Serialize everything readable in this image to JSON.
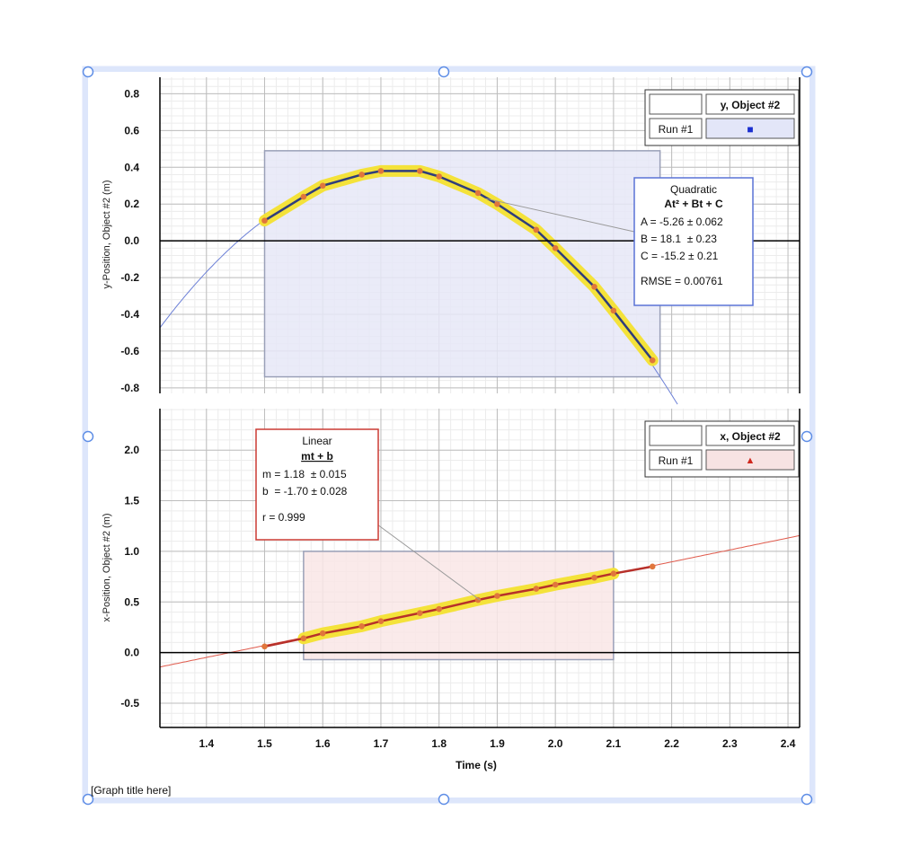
{
  "graph_title": "[Graph title here]",
  "colors": {
    "selection_frame": "#dde6fb",
    "handle": "#5f8ee6",
    "y_series": "#2f3d7c",
    "x_series": "#b7302a",
    "point": "#e0763c",
    "highlight": "#f4e23a",
    "y_region": "#e6e8f7",
    "x_region": "#f9e6e6",
    "y_fit_line": "#6b7fd6",
    "x_fit_line": "#e05a4c",
    "box_y_border": "#5a73d6",
    "box_x_border": "#cc3a33"
  },
  "chart_data": [
    {
      "type": "line",
      "id": "y_chart",
      "ylabel": "y-Position, Object #2 (m)",
      "xlabel": "",
      "xlim": [
        1.32,
        2.42
      ],
      "ylim": [
        -0.83,
        0.89
      ],
      "y_ticks": [
        "0.8",
        "0.6",
        "0.4",
        "0.2",
        "0.0",
        "-0.2",
        "-0.4",
        "-0.6",
        "-0.8"
      ],
      "y_tick_values": [
        0.8,
        0.6,
        0.4,
        0.2,
        0.0,
        -0.2,
        -0.4,
        -0.6,
        -0.8
      ],
      "grid": true,
      "series": [
        {
          "name": "Run #1",
          "marker": "square",
          "x": [
            1.5,
            1.567,
            1.6,
            1.667,
            1.7,
            1.767,
            1.8,
            1.867,
            1.9,
            1.967,
            2.0,
            2.067,
            2.1,
            2.167
          ],
          "y": [
            0.11,
            0.24,
            0.3,
            0.36,
            0.38,
            0.38,
            0.35,
            0.26,
            0.2,
            0.06,
            -0.04,
            -0.25,
            -0.38,
            -0.65
          ]
        }
      ],
      "selection": {
        "x": [
          1.5,
          2.18
        ],
        "y": [
          -0.74,
          0.49
        ]
      },
      "fit": {
        "kind": "quadratic",
        "A": -5.26,
        "B": 18.1,
        "C": -15.2,
        "x_range": [
          1.32,
          2.21
        ]
      },
      "legend": {
        "placement": "top-right",
        "header": "y, Object #2",
        "run_label": "Run #1",
        "symbol": "■"
      },
      "fit_box": {
        "title": "Quadratic",
        "formula": "At² + Bt + C",
        "lines": [
          "A = -5.26 ± 0.062",
          "B = 18.1  ± 0.23",
          "C = -15.2 ± 0.21"
        ],
        "stat": "RMSE = 0.00761"
      }
    },
    {
      "type": "line",
      "id": "x_chart",
      "ylabel": "x-Position, Object #2 (m)",
      "xlabel": "Time (s)",
      "xlim": [
        1.32,
        2.42
      ],
      "ylim": [
        -0.74,
        2.41
      ],
      "x_ticks": [
        "1.4",
        "1.5",
        "1.6",
        "1.7",
        "1.8",
        "1.9",
        "2.0",
        "2.1",
        "2.2",
        "2.3",
        "2.4"
      ],
      "x_tick_values": [
        1.4,
        1.5,
        1.6,
        1.7,
        1.8,
        1.9,
        2.0,
        2.1,
        2.2,
        2.3,
        2.4
      ],
      "y_ticks": [
        "2.0",
        "1.5",
        "1.0",
        "0.5",
        "0.0",
        "-0.5"
      ],
      "y_tick_values": [
        2.0,
        1.5,
        1.0,
        0.5,
        0.0,
        -0.5
      ],
      "grid": true,
      "series": [
        {
          "name": "Run #1",
          "marker": "triangle",
          "x": [
            1.5,
            1.567,
            1.6,
            1.667,
            1.7,
            1.767,
            1.8,
            1.867,
            1.9,
            1.967,
            2.0,
            2.067,
            2.1,
            2.167
          ],
          "y": [
            0.06,
            0.14,
            0.19,
            0.26,
            0.31,
            0.39,
            0.43,
            0.52,
            0.56,
            0.63,
            0.67,
            0.74,
            0.78,
            0.85
          ]
        }
      ],
      "selection": {
        "x": [
          1.567,
          2.1
        ],
        "y": [
          -0.07,
          1.0
        ]
      },
      "fit": {
        "kind": "linear",
        "m": 1.18,
        "b": -1.7,
        "x_range": [
          1.32,
          2.42
        ]
      },
      "legend": {
        "placement": "top-right",
        "header": "x, Object #2",
        "run_label": "Run #1",
        "symbol": "▲"
      },
      "fit_box": {
        "title": "Linear",
        "formula": "mt + b",
        "lines": [
          "m = 1.18  ± 0.015",
          "b  = -1.70 ± 0.028"
        ],
        "stat": "r = 0.999"
      }
    }
  ]
}
